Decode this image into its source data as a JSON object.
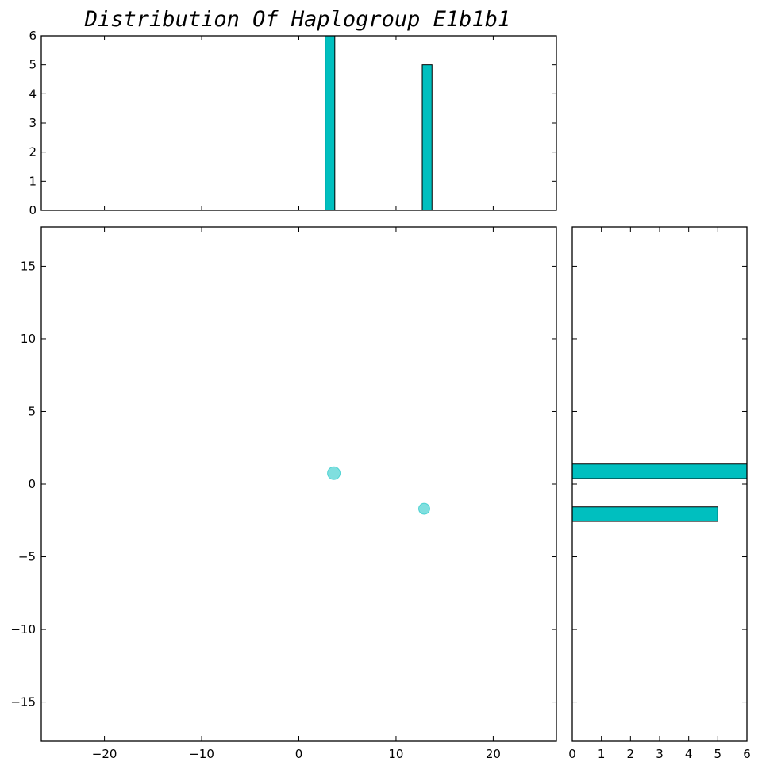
{
  "chart_data": {
    "type": "scatter",
    "title": "Distribution Of Haplogroup E1b1b1",
    "color": "#00bfbf",
    "scatter": {
      "points": [
        {
          "x": 3.6,
          "y": 0.75,
          "size": "large"
        },
        {
          "x": 12.9,
          "y": -1.7,
          "size": "small"
        }
      ],
      "xlim": [
        -26.5,
        26.5
      ],
      "ylim": [
        -17.7,
        17.7
      ],
      "xticks": [
        -20,
        -10,
        0,
        10,
        20
      ],
      "xtick_labels": [
        "−20",
        "−10",
        "0",
        "10",
        "20"
      ],
      "yticks": [
        -15,
        -10,
        -5,
        0,
        5,
        10,
        15
      ],
      "ytick_labels": [
        "−15",
        "−10",
        "−5",
        "0",
        "5",
        "10",
        "15"
      ]
    },
    "top_histogram": {
      "bars": [
        {
          "x0": 2.7,
          "x1": 3.7,
          "count": 6
        },
        {
          "x0": 12.7,
          "x1": 13.7,
          "count": 5
        }
      ],
      "ylim": [
        0,
        6
      ],
      "yticks": [
        0,
        1,
        2,
        3,
        4,
        5,
        6
      ],
      "ytick_labels": [
        "0",
        "1",
        "2",
        "3",
        "4",
        "5",
        "6"
      ]
    },
    "right_histogram": {
      "bars": [
        {
          "y0": 0.38,
          "y1": 1.38,
          "count": 6
        },
        {
          "y0": -2.57,
          "y1": -1.57,
          "count": 5
        }
      ],
      "xlim": [
        0,
        6
      ],
      "xticks": [
        0,
        1,
        2,
        3,
        4,
        5,
        6
      ],
      "xtick_labels": [
        "0",
        "1",
        "2",
        "3",
        "4",
        "5",
        "6"
      ]
    }
  }
}
